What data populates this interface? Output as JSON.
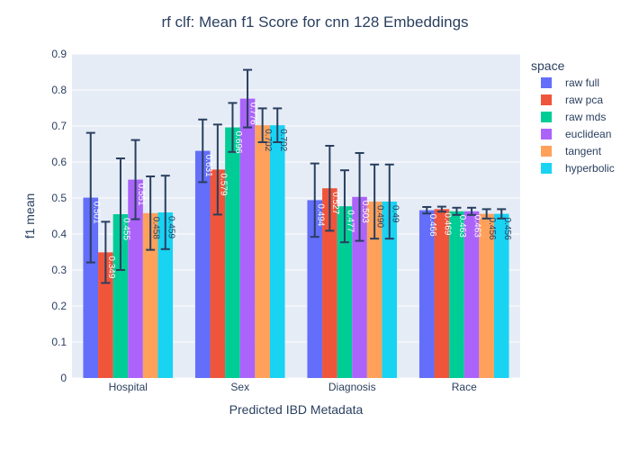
{
  "chart_data": {
    "type": "bar",
    "title": "rf clf: Mean f1 Score for cnn 128 Embeddings",
    "xlabel": "Predicted IBD Metadata",
    "ylabel": "f1 mean",
    "ylim": [
      0,
      0.9
    ],
    "yticks": [
      "0",
      "0.1",
      "0.2",
      "0.3",
      "0.4",
      "0.5",
      "0.6",
      "0.7",
      "0.8",
      "0.9"
    ],
    "ytick_values": [
      0,
      0.1,
      0.2,
      0.3,
      0.4,
      0.5,
      0.6,
      0.7,
      0.8,
      0.9
    ],
    "grid": true,
    "legend_title": "space",
    "legend_position": "right",
    "categories": [
      "Hospital",
      "Sex",
      "Diagnosis",
      "Race"
    ],
    "series": [
      {
        "name": "raw full",
        "color": "#636efa",
        "values": [
          0.501,
          0.631,
          0.494,
          0.466
        ],
        "errors": [
          0.18,
          0.087,
          0.102,
          0.009
        ],
        "labels": [
          "0.501",
          "0.631",
          "0.494",
          "0.466"
        ]
      },
      {
        "name": "raw pca",
        "color": "#ef553b",
        "values": [
          0.349,
          0.579,
          0.527,
          0.469
        ],
        "errors": [
          0.085,
          0.125,
          0.118,
          0.007
        ],
        "labels": [
          "0.349",
          "0.579",
          "0.527",
          "0.469"
        ]
      },
      {
        "name": "raw mds",
        "color": "#00cc96",
        "values": [
          0.455,
          0.696,
          0.477,
          0.463
        ],
        "errors": [
          0.155,
          0.068,
          0.1,
          0.01
        ],
        "labels": [
          "0.455",
          "0.696",
          "0.477",
          "0.463"
        ]
      },
      {
        "name": "euclidean",
        "color": "#ab63fa",
        "values": [
          0.551,
          0.776,
          0.503,
          0.463
        ],
        "errors": [
          0.11,
          0.08,
          0.122,
          0.01
        ],
        "labels": [
          "0.551",
          "0.776",
          "0.503",
          "0.463"
        ]
      },
      {
        "name": "tangent",
        "color": "#ffa15a",
        "values": [
          0.458,
          0.702,
          0.49,
          0.456
        ],
        "errors": [
          0.102,
          0.047,
          0.103,
          0.013
        ],
        "labels": [
          "0.458",
          "0.702",
          "0.490",
          "0.456"
        ]
      },
      {
        "name": "hyperbolic",
        "color": "#19d3f3",
        "values": [
          0.46,
          0.702,
          0.49,
          0.456
        ],
        "errors": [
          0.102,
          0.047,
          0.103,
          0.013
        ],
        "labels": [
          "0.459",
          "0.702",
          "0.49",
          "0.456"
        ]
      }
    ]
  }
}
